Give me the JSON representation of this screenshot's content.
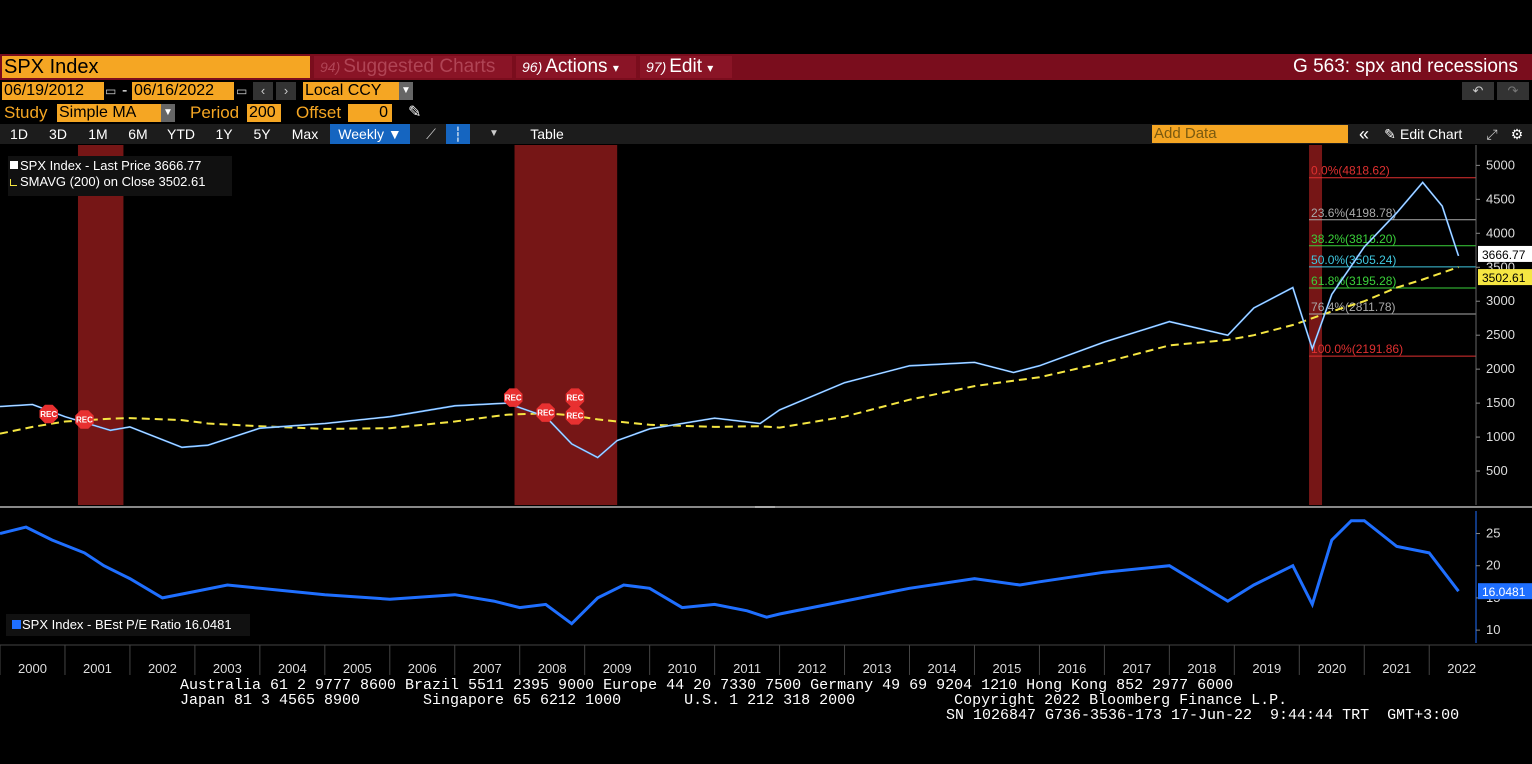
{
  "header": {
    "ticker": "SPX Index",
    "suggested": {
      "num": "94)",
      "label": "Suggested Charts"
    },
    "actions": {
      "num": "96)",
      "label": "Actions",
      "arrow": "▾"
    },
    "edit": {
      "num": "97)",
      "label": "Edit",
      "arrow": "▾"
    },
    "title": "G 563: spx and recessions"
  },
  "date_range": {
    "start": "06/19/2012",
    "sep": "-",
    "end": "06/16/2022",
    "currency": "Local CCY"
  },
  "study": {
    "label": "Study",
    "value": "Simple MA",
    "period_label": "Period",
    "period": "200",
    "offset_label": "Offset",
    "offset": "0"
  },
  "toolbar": {
    "periods": [
      "1D",
      "3D",
      "1M",
      "6M",
      "YTD",
      "1Y",
      "5Y",
      "Max"
    ],
    "frequency": "Weekly ▼",
    "table": "Table",
    "add_data_placeholder": "Add Data",
    "edit_chart": "Edit Chart"
  },
  "legend": {
    "main": "SPX Index  - Last Price 3666.77",
    "sma": "SMAVG (200)  on Close 3502.61",
    "lower": "SPX Index - BEst P/E Ratio 16.0481"
  },
  "colors": {
    "price": "#4fa3ff",
    "sma": "#f5e642",
    "pe": "#1f6fff",
    "recession": "#8b1a1a",
    "accent": "#f5a623"
  },
  "chart_data": [
    {
      "type": "line",
      "title": "",
      "xlabel": "",
      "ylabel": "",
      "x": [
        2000,
        2000.5,
        2001,
        2001.7,
        2002,
        2002.8,
        2003.2,
        2004,
        2005,
        2006,
        2007,
        2007.8,
        2008.4,
        2008.8,
        2009.2,
        2009.5,
        2010,
        2011,
        2011.7,
        2012,
        2013,
        2014,
        2015,
        2015.6,
        2016,
        2017,
        2018,
        2018.9,
        2019.3,
        2019.9,
        2020.2,
        2020.5,
        2021,
        2021.5,
        2021.9,
        2022.2,
        2022.45
      ],
      "series": [
        {
          "name": "SPX Index",
          "values": [
            1450,
            1480,
            1300,
            1100,
            1150,
            850,
            880,
            1130,
            1200,
            1300,
            1460,
            1500,
            1300,
            900,
            700,
            950,
            1120,
            1280,
            1200,
            1400,
            1800,
            2050,
            2100,
            1950,
            2050,
            2400,
            2700,
            2500,
            2900,
            3200,
            2300,
            3100,
            3800,
            4300,
            4750,
            4400,
            3666.77
          ]
        },
        {
          "name": "SMAVG (200)",
          "values": [
            1050,
            1150,
            1230,
            1270,
            1280,
            1250,
            1200,
            1160,
            1120,
            1130,
            1230,
            1330,
            1350,
            1320,
            1260,
            1230,
            1180,
            1150,
            1160,
            1140,
            1300,
            1550,
            1750,
            1830,
            1880,
            2100,
            2350,
            2430,
            2500,
            2650,
            2750,
            2850,
            3000,
            3200,
            3320,
            3420,
            3502.61
          ]
        }
      ],
      "ylim": [
        0,
        5300
      ],
      "yticks": [
        500,
        1000,
        1500,
        2000,
        2500,
        3000,
        3500,
        4000,
        4500,
        5000
      ],
      "price_tags": [
        "3666.77",
        "3502.61"
      ],
      "recessions": [
        [
          2001.2,
          2001.9
        ],
        [
          2007.92,
          2009.5
        ],
        [
          2020.15,
          2020.35
        ]
      ],
      "rec_markers": [
        "REC",
        "REC",
        "REC",
        "REC",
        "REC",
        "REC"
      ],
      "fibonacci": [
        {
          "label": "0.0%(4818.62)",
          "value": 4818.62,
          "color": "#e03030"
        },
        {
          "label": "23.6%(4198.78)",
          "value": 4198.78,
          "color": "#aaaaaa"
        },
        {
          "label": "38.2%(3816.20)",
          "value": 3816.2,
          "color": "#3ad13a"
        },
        {
          "label": "50.0%(3505.24)",
          "value": 3505.24,
          "color": "#40c8e0"
        },
        {
          "label": "61.8%(3195.28)",
          "value": 3195.28,
          "color": "#3ad13a"
        },
        {
          "label": "76.4%(2811.78)",
          "value": 2811.78,
          "color": "#aaaaaa"
        },
        {
          "label": "100.0%(2191.86)",
          "value": 2191.86,
          "color": "#e03030"
        }
      ]
    },
    {
      "type": "line",
      "title": "",
      "xlabel": "",
      "ylabel": "",
      "x": [
        2000,
        2000.4,
        2000.8,
        2001.3,
        2001.6,
        2002,
        2002.5,
        2003,
        2003.5,
        2004,
        2005,
        2006,
        2007,
        2007.6,
        2008,
        2008.4,
        2008.8,
        2009.2,
        2009.6,
        2010,
        2010.5,
        2011,
        2011.5,
        2011.8,
        2012,
        2013,
        2014,
        2015,
        2015.7,
        2016,
        2017,
        2018,
        2018.9,
        2019.3,
        2019.9,
        2020.2,
        2020.5,
        2020.8,
        2021,
        2021.5,
        2022,
        2022.45
      ],
      "series": [
        {
          "name": "SPX Index - BEst P/E Ratio",
          "values": [
            25,
            26,
            24,
            22,
            20,
            18,
            15,
            16,
            17,
            16.5,
            15.5,
            14.8,
            15.5,
            14.5,
            13.5,
            14,
            11,
            15,
            17,
            16.5,
            13.5,
            14,
            13,
            12,
            12.5,
            14.5,
            16.5,
            18,
            17,
            17.5,
            19,
            20,
            14.5,
            17,
            20,
            14,
            24,
            27,
            27,
            23,
            22,
            16.0481
          ]
        }
      ],
      "ylim": [
        8,
        28.5
      ],
      "yticks": [
        10,
        15,
        20,
        25
      ],
      "price_tags": [
        "16.0481"
      ]
    }
  ],
  "x_axis": {
    "years": [
      "2000",
      "2001",
      "2002",
      "2003",
      "2004",
      "2005",
      "2006",
      "2007",
      "2008",
      "2009",
      "2010",
      "2011",
      "2012",
      "2013",
      "2014",
      "2015",
      "2016",
      "2017",
      "2018",
      "2019",
      "2020",
      "2021",
      "2022"
    ]
  },
  "footer": {
    "line1": "Australia 61 2 9777 8600 Brazil 5511 2395 9000 Europe 44 20 7330 7500 Germany 49 69 9204 1210 Hong Kong 852 2977 6000",
    "line2": "Japan 81 3 4565 8900       Singapore 65 6212 1000       U.S. 1 212 318 2000           Copyright 2022 Bloomberg Finance L.P.",
    "line3": "SN 1026847 G736-3536-173 17-Jun-22  9:44:44 TRT  GMT+3:00"
  }
}
